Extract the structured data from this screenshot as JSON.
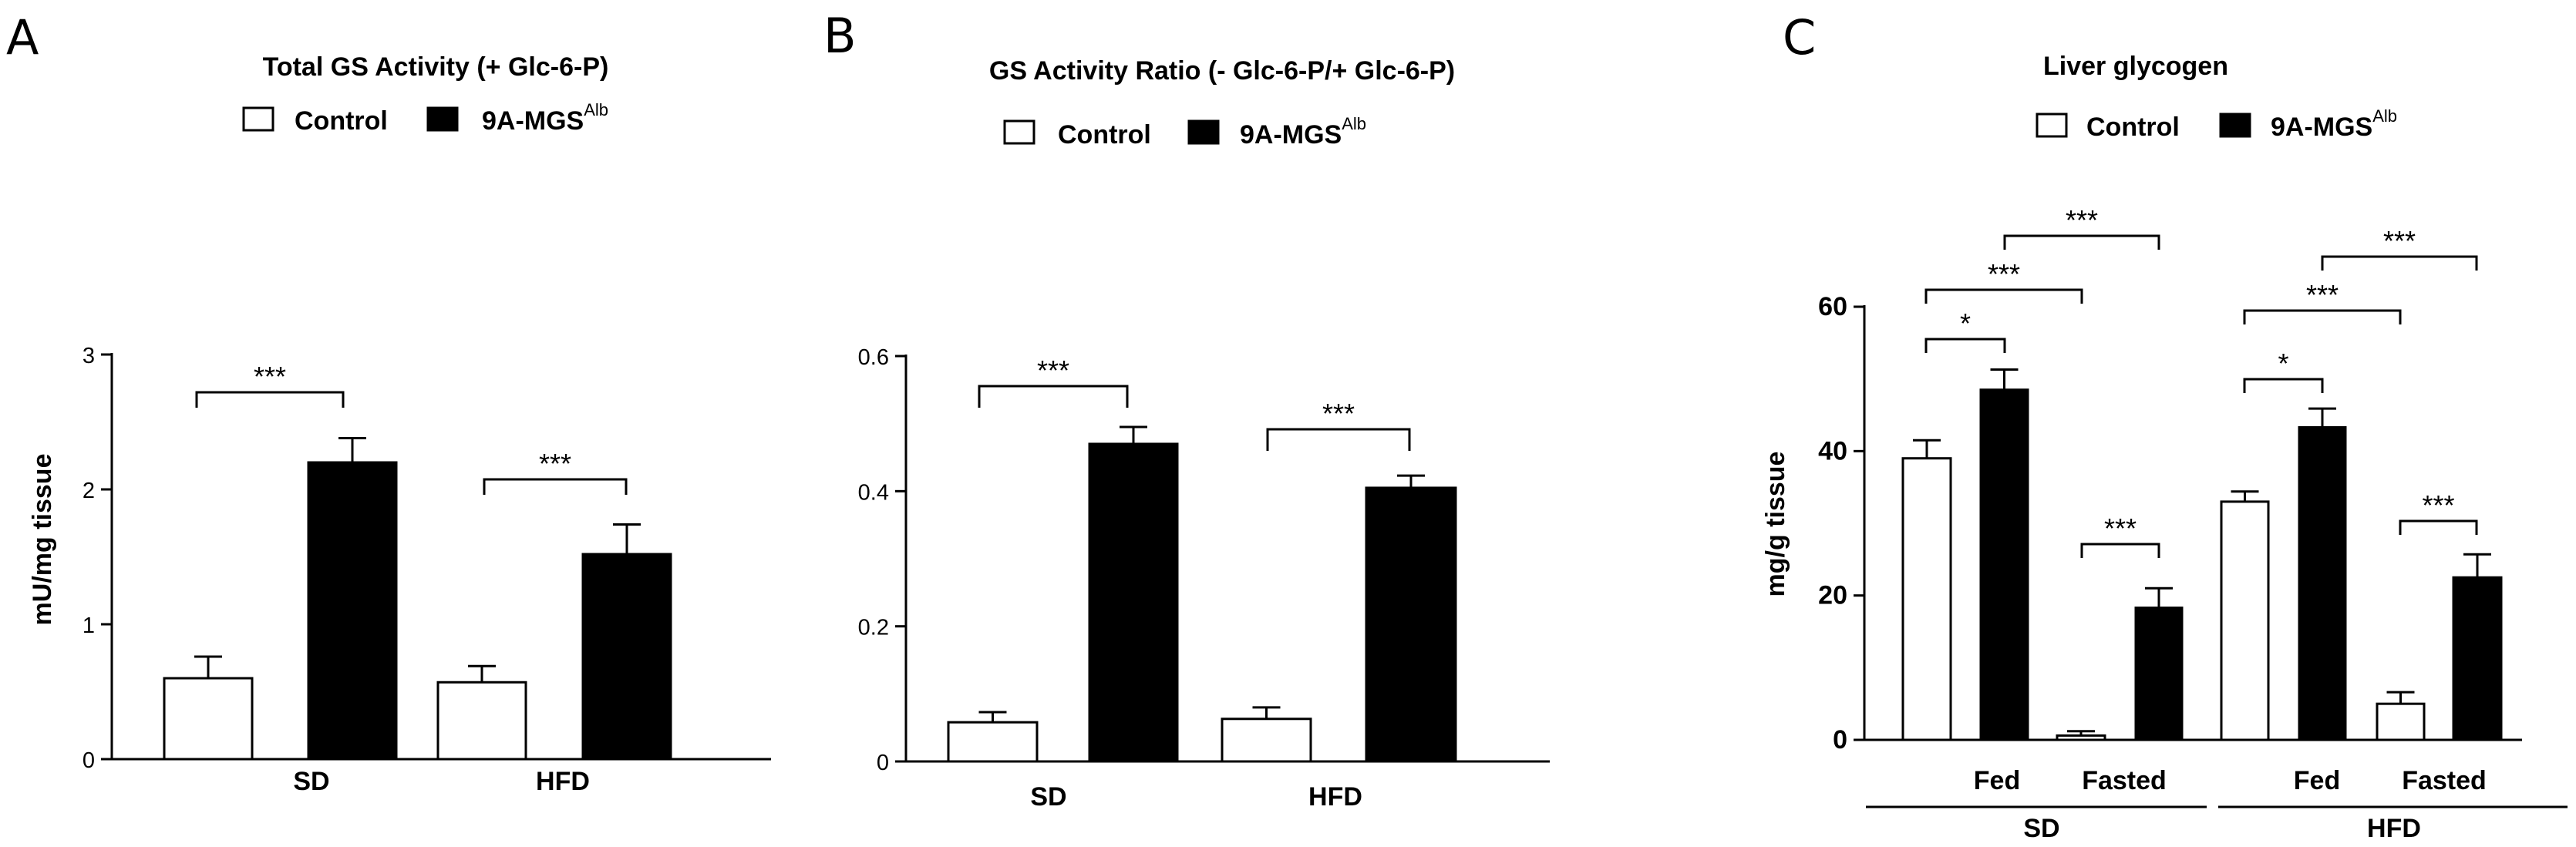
{
  "chart_data": [
    {
      "type": "bar",
      "panel": "A",
      "title": "Total GS Activity (+ Glc-6-P)",
      "ylabel": "mU/mg tissue",
      "ylim": [
        0,
        3
      ],
      "yticks": [
        "0",
        "1",
        "2",
        "3"
      ],
      "categories": [
        "SD",
        "HFD"
      ],
      "legend": [
        {
          "name": "Control",
          "sup": ""
        },
        {
          "name": "9A-MGS",
          "sup": "Alb"
        }
      ],
      "series": [
        {
          "name": "Control",
          "color": "#ffffff",
          "values": [
            0.6,
            0.57
          ],
          "errors": [
            0.16,
            0.12
          ]
        },
        {
          "name": "9A-MGS",
          "sup": "Alb",
          "color": "#000000",
          "values": [
            2.2,
            1.52
          ],
          "errors": [
            0.18,
            0.22
          ]
        }
      ],
      "annotations": [
        {
          "text": "***",
          "group": 0
        },
        {
          "text": "***",
          "group": 1
        }
      ]
    },
    {
      "type": "bar",
      "panel": "B",
      "title": "GS Activity Ratio (- Glc-6-P/+ Glc-6-P)",
      "ylabel": "",
      "ylim": [
        0,
        0.6
      ],
      "yticks": [
        "0",
        "0.2",
        "0.4",
        "0.6"
      ],
      "categories": [
        "SD",
        "HFD"
      ],
      "legend": [
        {
          "name": "Control",
          "sup": ""
        },
        {
          "name": "9A-MGS",
          "sup": "Alb"
        }
      ],
      "series": [
        {
          "name": "Control",
          "color": "#ffffff",
          "values": [
            0.058,
            0.063
          ],
          "errors": [
            0.015,
            0.017
          ]
        },
        {
          "name": "9A-MGS",
          "sup": "Alb",
          "color": "#000000",
          "values": [
            0.47,
            0.405
          ],
          "errors": [
            0.025,
            0.018
          ]
        }
      ],
      "annotations": [
        {
          "text": "***",
          "group": 0
        },
        {
          "text": "***",
          "group": 1
        }
      ]
    },
    {
      "type": "bar",
      "panel": "C",
      "title": "Liver glycogen",
      "ylabel": "mg/g tissue",
      "ylim": [
        0,
        60
      ],
      "yticks": [
        "0",
        "20",
        "40",
        "60"
      ],
      "categories": [
        "Fed",
        "Fasted",
        "Fed",
        "Fasted"
      ],
      "groups": [
        "SD",
        "HFD"
      ],
      "legend": [
        {
          "name": "Control",
          "sup": ""
        },
        {
          "name": "9A-MGS",
          "sup": "Alb"
        }
      ],
      "series": [
        {
          "name": "Control",
          "color": "#ffffff",
          "values": [
            39,
            0.6,
            33,
            5
          ],
          "errors": [
            2.5,
            0.6,
            1.4,
            1.6
          ]
        },
        {
          "name": "9A-MGS",
          "sup": "Alb",
          "color": "#000000",
          "values": [
            48.5,
            18.3,
            43.3,
            22.5
          ],
          "errors": [
            2.8,
            2.7,
            2.6,
            3.2
          ]
        }
      ],
      "annotations": [
        {
          "text": "*",
          "pair": "SD Fed: Control vs 9A-MGS"
        },
        {
          "text": "***",
          "pair": "SD Fasted: Control vs 9A-MGS"
        },
        {
          "text": "***",
          "pair": "SD Control: Fed vs Fasted"
        },
        {
          "text": "***",
          "pair": "SD 9A-MGS: Fed vs Fasted"
        },
        {
          "text": "*",
          "pair": "HFD Fed: Control vs 9A-MGS"
        },
        {
          "text": "***",
          "pair": "HFD Fasted: Control vs 9A-MGS"
        },
        {
          "text": "***",
          "pair": "HFD Control: Fed vs Fasted"
        },
        {
          "text": "***",
          "pair": "HFD 9A-MGS: Fed vs Fasted"
        }
      ]
    }
  ],
  "panel_labels": [
    "A",
    "B",
    "C"
  ]
}
